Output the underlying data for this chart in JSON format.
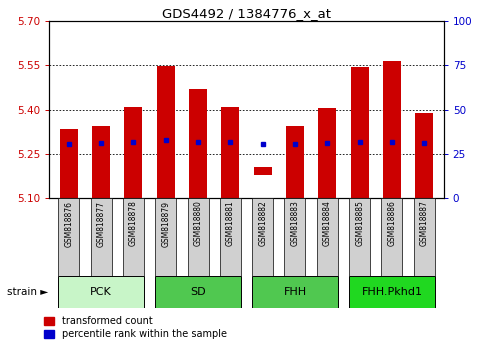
{
  "title": "GDS4492 / 1384776_x_at",
  "samples": [
    "GSM818876",
    "GSM818877",
    "GSM818878",
    "GSM818879",
    "GSM818880",
    "GSM818881",
    "GSM818882",
    "GSM818883",
    "GSM818884",
    "GSM818885",
    "GSM818886",
    "GSM818887"
  ],
  "bar_tops": [
    5.335,
    5.345,
    5.41,
    5.548,
    5.47,
    5.41,
    5.205,
    5.345,
    5.405,
    5.545,
    5.565,
    5.39
  ],
  "bar_bottoms": [
    5.1,
    5.1,
    5.1,
    5.1,
    5.1,
    5.1,
    5.178,
    5.1,
    5.1,
    5.1,
    5.1,
    5.1
  ],
  "percentile_values": [
    5.285,
    5.287,
    5.292,
    5.298,
    5.292,
    5.292,
    5.285,
    5.283,
    5.287,
    5.292,
    5.292,
    5.287
  ],
  "ylim": [
    5.1,
    5.7
  ],
  "yticks_left": [
    5.1,
    5.25,
    5.4,
    5.55,
    5.7
  ],
  "yticks_right": [
    0,
    25,
    50,
    75,
    100
  ],
  "groups": [
    {
      "label": "PCK",
      "start": 0,
      "end": 3,
      "color": "#c8f5c8"
    },
    {
      "label": "SD",
      "start": 3,
      "end": 6,
      "color": "#50c850"
    },
    {
      "label": "FHH",
      "start": 6,
      "end": 9,
      "color": "#50c850"
    },
    {
      "label": "FHH.Pkhd1",
      "start": 9,
      "end": 12,
      "color": "#20d820"
    }
  ],
  "bar_color": "#cc0000",
  "percentile_color": "#0000cc",
  "tick_label_color_left": "#cc0000",
  "tick_label_color_right": "#0000cc",
  "bar_width": 0.55,
  "sample_box_color": "#d0d0d0",
  "strain_label": "strain",
  "legend_red": "transformed count",
  "legend_blue": "percentile rank within the sample"
}
